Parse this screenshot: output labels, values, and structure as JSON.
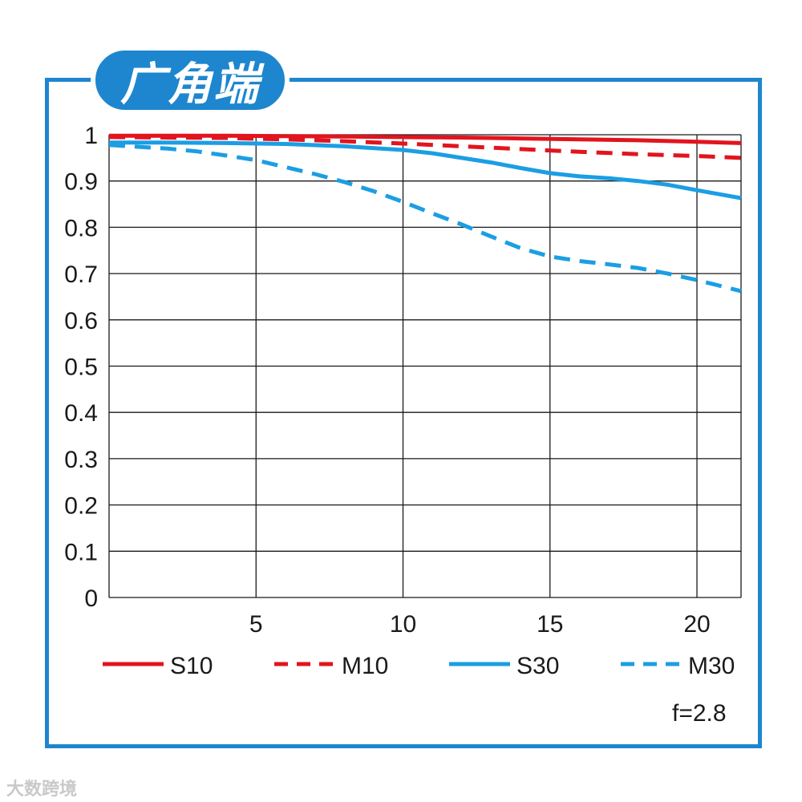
{
  "header": {
    "title": "广角端"
  },
  "footer": {
    "aperture_label": "f=2.8",
    "watermark": "大数跨境"
  },
  "colors": {
    "frame": "#1d86cf",
    "red": "#e2141e",
    "blue": "#1b9ee3",
    "grid": "#1a1a1a"
  },
  "chart_data": {
    "type": "line",
    "title": "广角端",
    "xlabel": "",
    "ylabel": "",
    "xlim": [
      0,
      21.5
    ],
    "ylim": [
      0,
      1
    ],
    "grid": true,
    "legend_position": "bottom",
    "x_ticks": [
      "5",
      "10",
      "15",
      "20"
    ],
    "x_tick_values": [
      5,
      10,
      15,
      20
    ],
    "y_ticks": [
      "0",
      "0.1",
      "0.2",
      "0.3",
      "0.4",
      "0.5",
      "0.6",
      "0.7",
      "0.8",
      "0.9",
      "1"
    ],
    "y_tick_values": [
      0,
      0.1,
      0.2,
      0.3,
      0.4,
      0.5,
      0.6,
      0.7,
      0.8,
      0.9,
      1
    ],
    "series": [
      {
        "name": "S10",
        "color": "#e2141e",
        "dash": false,
        "x": [
          0,
          2,
          4,
          6,
          8,
          10,
          12,
          14,
          16,
          18,
          20,
          21.5
        ],
        "y": [
          0.998,
          0.998,
          0.998,
          0.997,
          0.996,
          0.995,
          0.994,
          0.992,
          0.99,
          0.988,
          0.985,
          0.982
        ]
      },
      {
        "name": "M10",
        "color": "#e2141e",
        "dash": true,
        "x": [
          0,
          2,
          4,
          6,
          8,
          10,
          12,
          14,
          16,
          18,
          20,
          21.5
        ],
        "y": [
          0.995,
          0.994,
          0.993,
          0.99,
          0.986,
          0.981,
          0.975,
          0.969,
          0.963,
          0.958,
          0.954,
          0.95
        ]
      },
      {
        "name": "S30",
        "color": "#1b9ee3",
        "dash": false,
        "x": [
          0,
          2,
          4,
          6,
          8,
          10,
          11,
          12,
          13,
          14,
          15,
          16,
          17,
          18,
          19,
          20,
          21.5
        ],
        "y": [
          0.983,
          0.983,
          0.982,
          0.98,
          0.975,
          0.967,
          0.96,
          0.95,
          0.94,
          0.928,
          0.917,
          0.91,
          0.906,
          0.9,
          0.892,
          0.88,
          0.863
        ]
      },
      {
        "name": "M30",
        "color": "#1b9ee3",
        "dash": true,
        "x": [
          0,
          2,
          3,
          4,
          5,
          6,
          7,
          8,
          9,
          10,
          11,
          12,
          13,
          14,
          15,
          16,
          17,
          18,
          19,
          20,
          21.5
        ],
        "y": [
          0.978,
          0.97,
          0.964,
          0.955,
          0.945,
          0.93,
          0.915,
          0.898,
          0.878,
          0.855,
          0.83,
          0.806,
          0.78,
          0.755,
          0.737,
          0.727,
          0.72,
          0.712,
          0.7,
          0.686,
          0.662
        ]
      }
    ]
  }
}
